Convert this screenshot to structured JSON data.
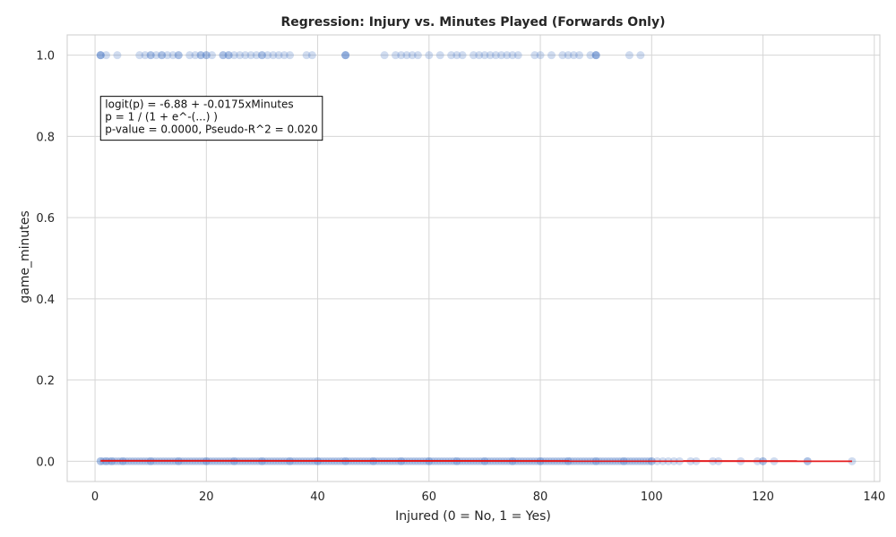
{
  "chart_data": {
    "type": "scatter",
    "title": "Regression: Injury vs. Minutes Played (Forwards Only)",
    "xlabel": "Injured (0 = No, 1 = Yes)",
    "ylabel": "game_minutes",
    "xlim": [
      -5,
      141
    ],
    "ylim": [
      -0.05,
      1.05
    ],
    "xticks": [
      0,
      20,
      40,
      60,
      80,
      100,
      120,
      140
    ],
    "yticks": [
      0.0,
      0.2,
      0.4,
      0.6,
      0.8,
      1.0
    ],
    "xtick_labels": [
      "0",
      "20",
      "40",
      "60",
      "80",
      "100",
      "120",
      "140"
    ],
    "ytick_labels": [
      "0.0",
      "0.2",
      "0.4",
      "0.6",
      "0.8",
      "1.0"
    ],
    "grid": true,
    "series": [
      {
        "marker": "circle",
        "color": "#4472c4",
        "alpha": 0.25,
        "points_y1": [
          1,
          1,
          1,
          2,
          4,
          8,
          9,
          10,
          10,
          11,
          12,
          12,
          13,
          14,
          15,
          15,
          17,
          18,
          19,
          19,
          20,
          20,
          21,
          23,
          23,
          24,
          24,
          25,
          26,
          27,
          28,
          29,
          30,
          30,
          31,
          32,
          33,
          34,
          35,
          38,
          39,
          45,
          45,
          45,
          52,
          54,
          55,
          56,
          57,
          58,
          60,
          62,
          64,
          65,
          66,
          68,
          69,
          70,
          71,
          72,
          73,
          74,
          75,
          76,
          79,
          80,
          82,
          84,
          85,
          86,
          87,
          89,
          90,
          90,
          90,
          96,
          98
        ],
        "points_y0": [
          1,
          2,
          3,
          5,
          10,
          15,
          20,
          25,
          30,
          35,
          40,
          45,
          50,
          55,
          60,
          65,
          70,
          75,
          80,
          85,
          90,
          95,
          100,
          101,
          102,
          103,
          104,
          105,
          107,
          108,
          111,
          112,
          116,
          119,
          120,
          120,
          122,
          128,
          128,
          136
        ]
      },
      {
        "type": "line",
        "color": "#e41a1c",
        "x": [
          1,
          136
        ],
        "y": [
          0.001,
          0.0001
        ]
      }
    ],
    "annotation": {
      "lines": [
        "logit(p) = -6.88 + -0.0175xMinutes",
        "p = 1 / (1 + e^-(...) )",
        "p-value = 0.0000, Pseudo-R^2 = 0.020"
      ],
      "x": 1,
      "y": 0.87
    }
  }
}
